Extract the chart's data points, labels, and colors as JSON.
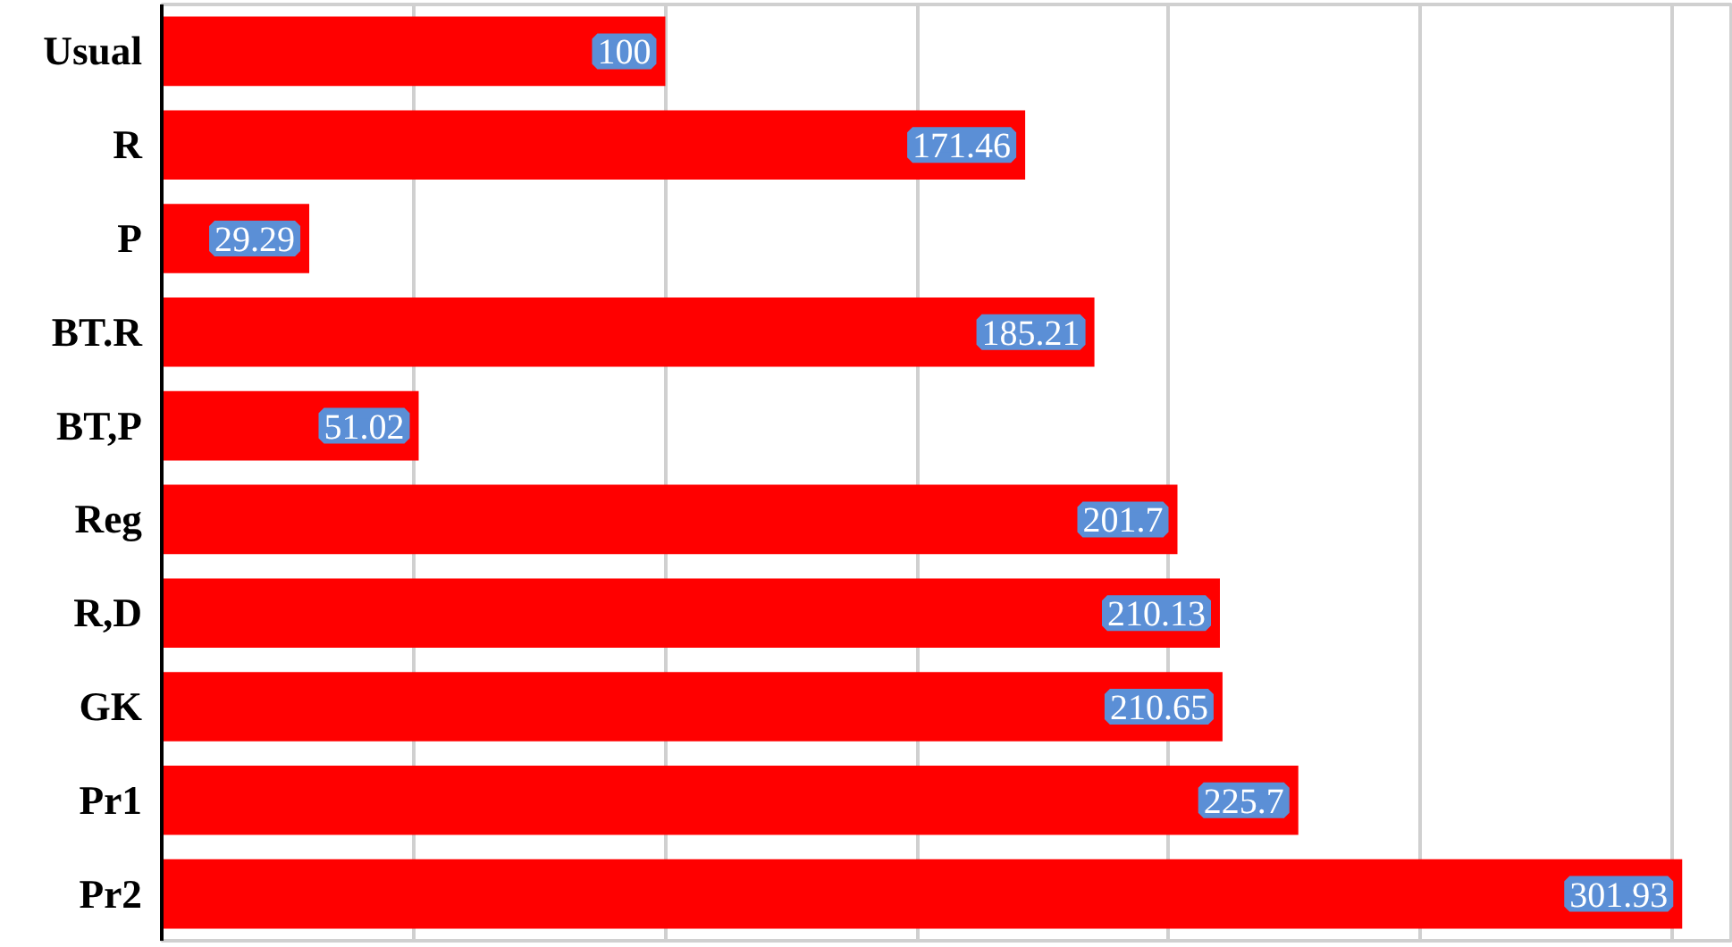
{
  "chart_data": {
    "type": "bar",
    "orientation": "horizontal",
    "categories": [
      "Usual",
      "R",
      "P",
      "BT.R",
      "BT,P",
      "Reg",
      "R,D",
      "GK",
      "Pr1",
      "Pr2"
    ],
    "values": [
      100,
      171.46,
      29.29,
      185.21,
      51.02,
      201.7,
      210.13,
      210.65,
      225.7,
      301.93
    ],
    "color": "#ff0000",
    "data_labels": true,
    "grid": "x",
    "tick_labels": "y",
    "xlim": [
      0,
      312
    ],
    "xticks": [
      {
        "value": 0,
        "label": null
      },
      {
        "value": 50,
        "label": null
      },
      {
        "value": 100,
        "label": null
      },
      {
        "value": 150,
        "label": null
      },
      {
        "value": 200,
        "label": null
      },
      {
        "value": 250,
        "label": null
      },
      {
        "value": 300,
        "label": null
      }
    ]
  }
}
